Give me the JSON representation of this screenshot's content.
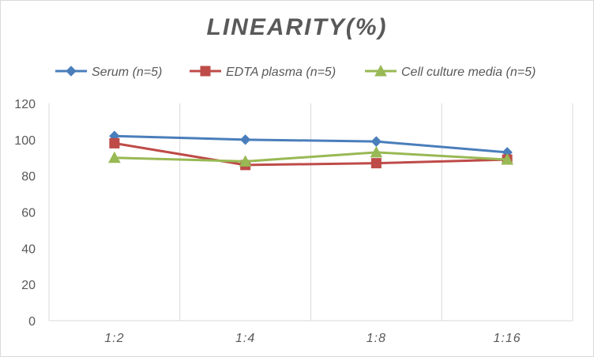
{
  "chart_data": {
    "type": "line",
    "title": "LINEARITY(%)",
    "xlabel": "",
    "ylabel": "",
    "categories": [
      "1:2",
      "1:4",
      "1:8",
      "1:16"
    ],
    "ylim": [
      0,
      120
    ],
    "yticks": [
      0,
      20,
      40,
      60,
      80,
      100,
      120
    ],
    "grid": "vertical",
    "legend_position": "top",
    "series": [
      {
        "name": "Serum (n=5)",
        "values": [
          102,
          100,
          99,
          93
        ],
        "color": "#4a7ebb",
        "marker": "diamond"
      },
      {
        "name": "EDTA plasma (n=5)",
        "values": [
          98,
          86,
          87,
          89
        ],
        "color": "#be4b48",
        "marker": "square"
      },
      {
        "name": "Cell culture media (n=5)",
        "values": [
          90,
          88,
          93,
          89
        ],
        "color": "#98b954",
        "marker": "triangle"
      }
    ]
  }
}
